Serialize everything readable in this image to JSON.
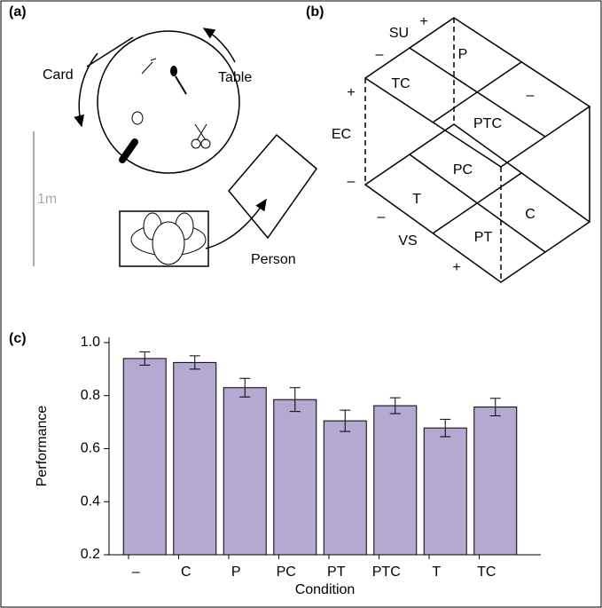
{
  "panel_a": {
    "label": "(a)",
    "texts": [
      "Card",
      "Table",
      "1m",
      "Person"
    ]
  },
  "panel_b": {
    "label": "(b)",
    "texts": [
      "SU",
      "+",
      "–",
      "P",
      "TC",
      "–",
      "+",
      "PTC",
      "EC",
      "–",
      "PC",
      "T",
      "C",
      "–",
      "VS",
      "PT",
      "+"
    ]
  },
  "panel_c": {
    "label": "(c)"
  },
  "chart_data": {
    "type": "bar",
    "x_label": "Condition",
    "y_label": "Performance",
    "categories": [
      "–",
      "C",
      "P",
      "PC",
      "PT",
      "PTC",
      "T",
      "TC"
    ],
    "values": [
      0.94,
      0.925,
      0.83,
      0.785,
      0.705,
      0.762,
      0.678,
      0.757
    ],
    "errors": [
      0.025,
      0.025,
      0.035,
      0.045,
      0.04,
      0.03,
      0.033,
      0.033
    ],
    "color": "#b5a9d1",
    "ylim": [
      0.2,
      1.02
    ],
    "yticks": [
      {
        "value": 1.0,
        "label": "1.0"
      },
      0.8,
      0.6,
      0.4,
      0.2
    ]
  }
}
